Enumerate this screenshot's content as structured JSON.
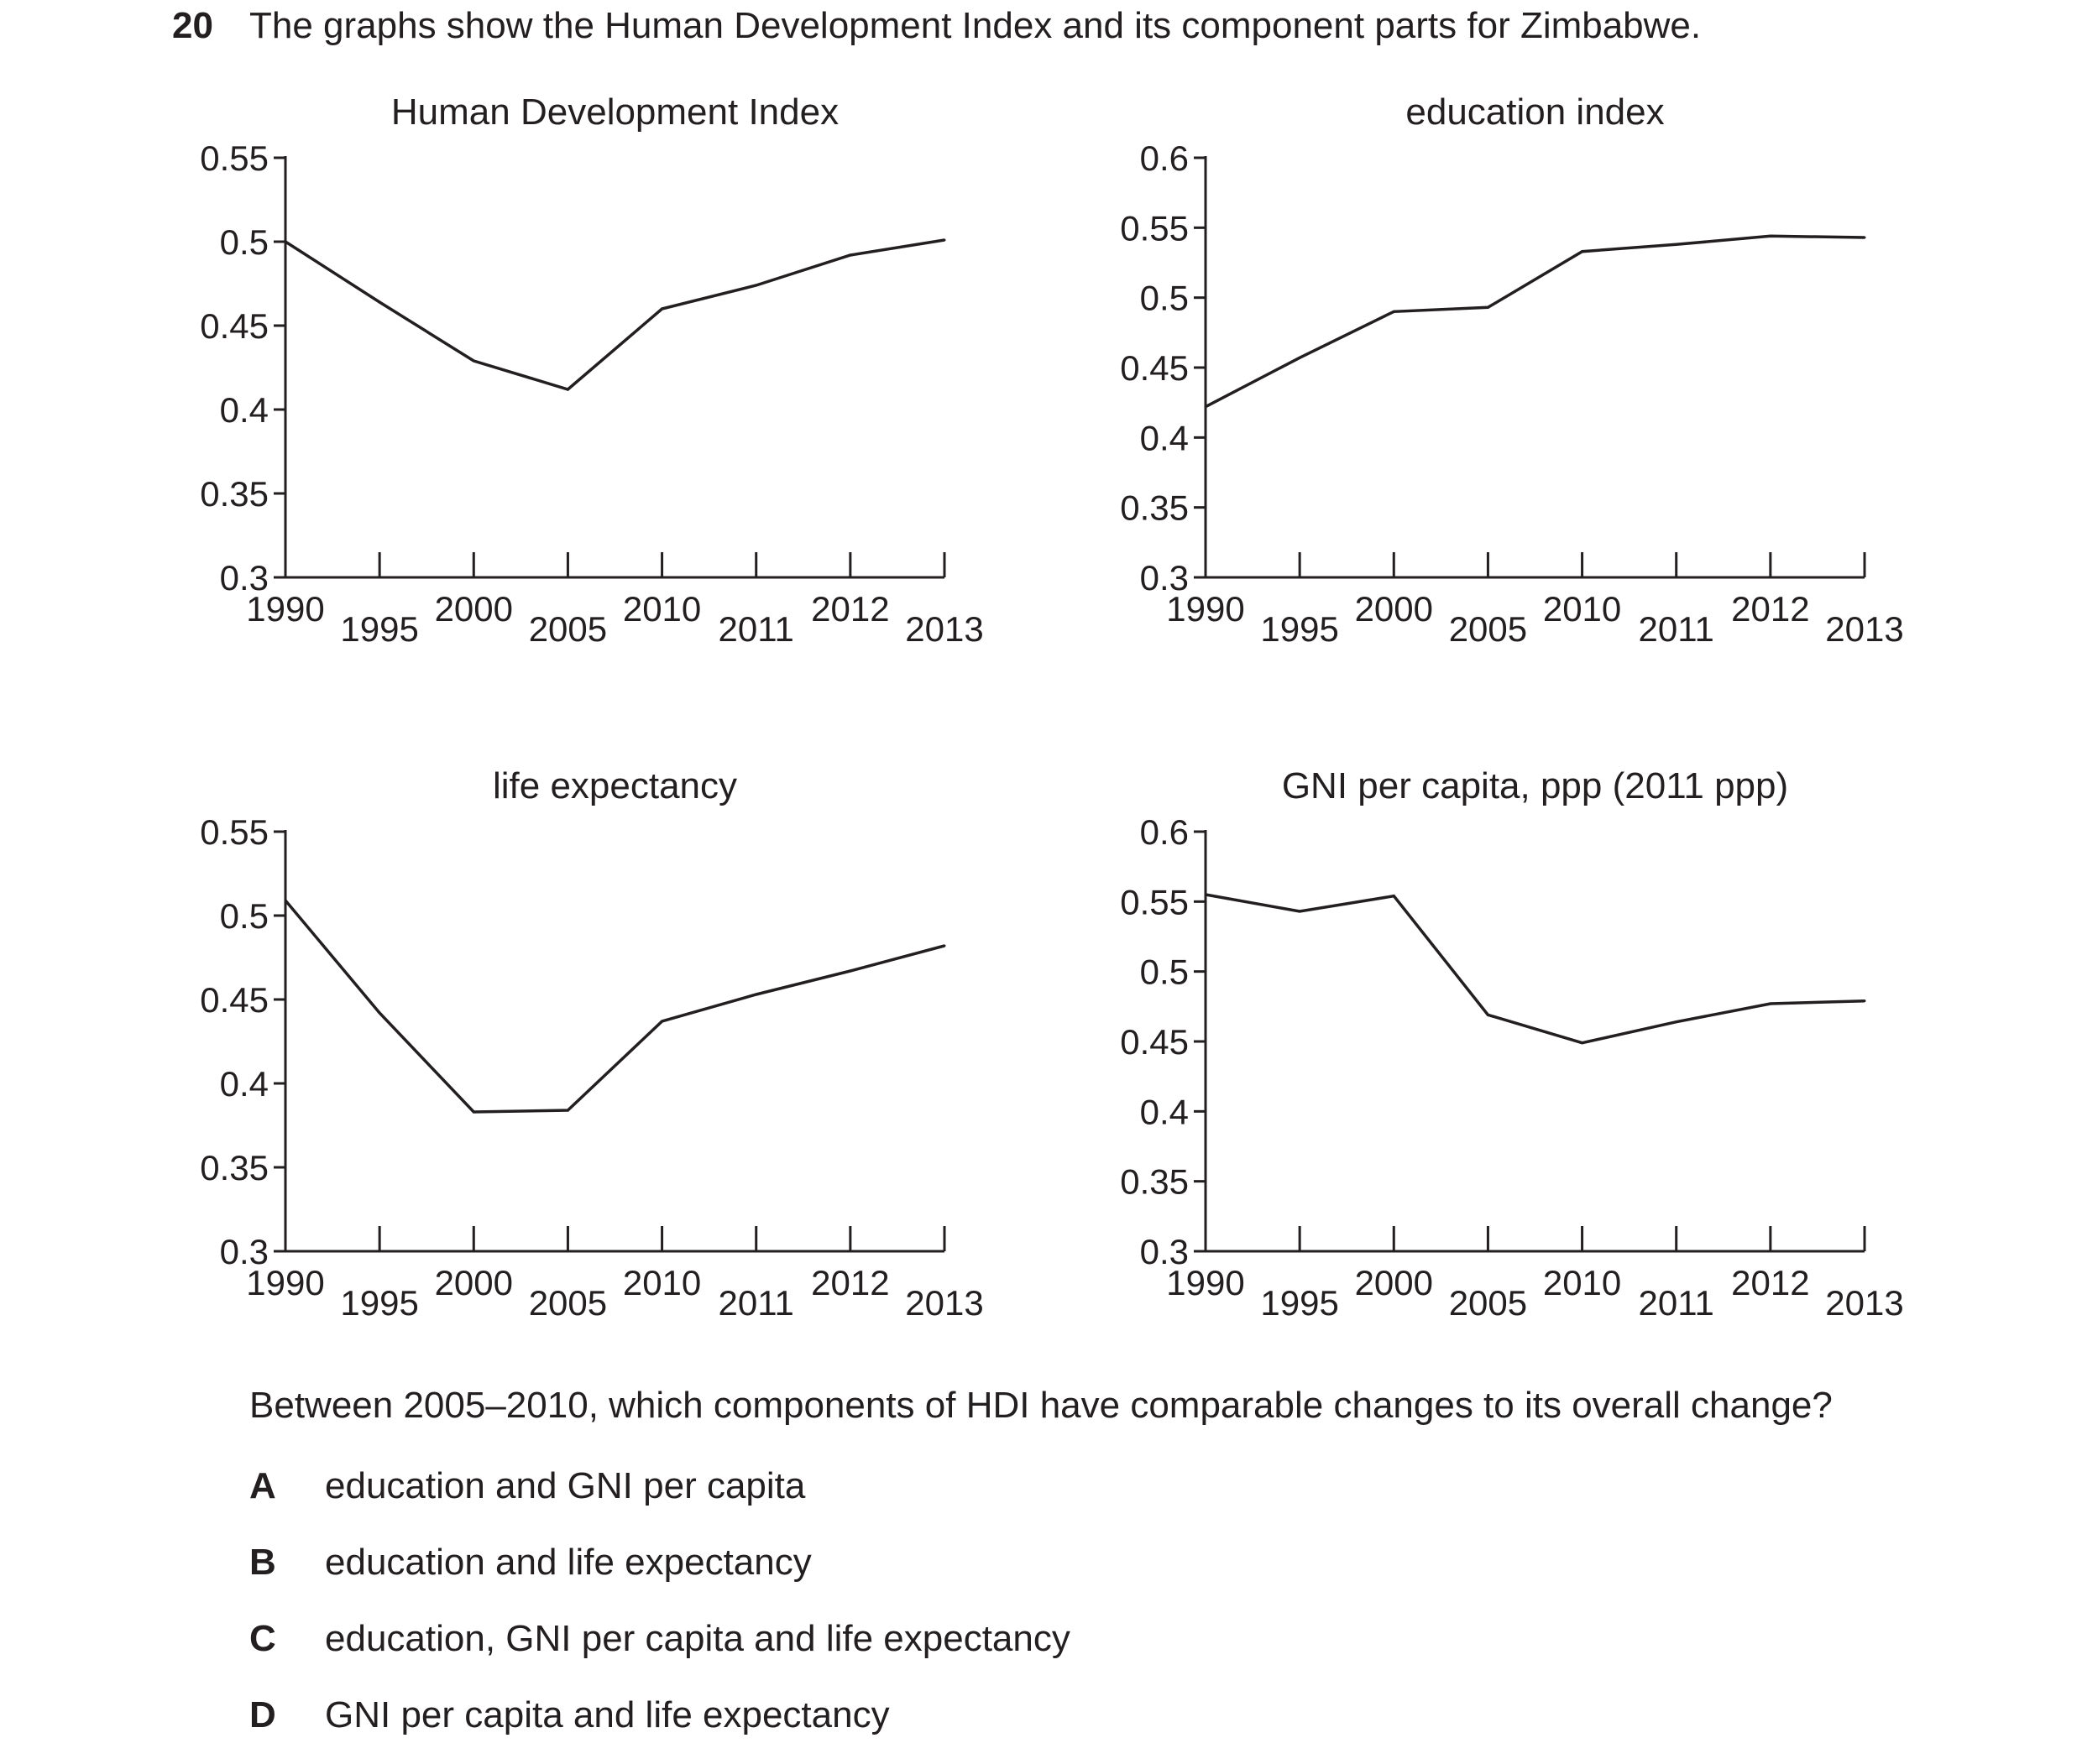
{
  "question": {
    "number": "20",
    "intro": "The graphs show the Human Development Index and its component parts for Zimbabwe.",
    "text": "Between 2005–2010, which components of HDI have comparable changes to its overall change?",
    "options": [
      {
        "letter": "A",
        "text": "education and GNI per capita"
      },
      {
        "letter": "B",
        "text": "education and life expectancy"
      },
      {
        "letter": "C",
        "text": "education, GNI per capita and life expectancy"
      },
      {
        "letter": "D",
        "text": "GNI per capita and life expectancy"
      }
    ]
  },
  "chart_data": [
    {
      "type": "line",
      "title": "Human Development Index",
      "categories": [
        "1990",
        "1995",
        "2000",
        "2005",
        "2010",
        "2011",
        "2012",
        "2013"
      ],
      "values": [
        0.5,
        0.464,
        0.429,
        0.412,
        0.46,
        0.474,
        0.492,
        0.501
      ],
      "ylim": [
        0.3,
        0.55
      ],
      "yticks": [
        "0.3",
        "0.35",
        "0.4",
        "0.45",
        "0.5",
        "0.55"
      ],
      "grid": false
    },
    {
      "type": "line",
      "title": "education index",
      "categories": [
        "1990",
        "1995",
        "2000",
        "2005",
        "2010",
        "2011",
        "2012",
        "2013"
      ],
      "values": [
        0.422,
        0.457,
        0.49,
        0.493,
        0.533,
        0.538,
        0.544,
        0.543
      ],
      "ylim": [
        0.3,
        0.6
      ],
      "yticks": [
        "0.3",
        "0.35",
        "0.4",
        "0.45",
        "0.5",
        "0.55",
        "0.6"
      ],
      "grid": false
    },
    {
      "type": "line",
      "title": "life expectancy",
      "categories": [
        "1990",
        "1995",
        "2000",
        "2005",
        "2010",
        "2011",
        "2012",
        "2013"
      ],
      "values": [
        0.509,
        0.442,
        0.383,
        0.384,
        0.437,
        0.453,
        0.467,
        0.482
      ],
      "ylim": [
        0.3,
        0.55
      ],
      "yticks": [
        "0.3",
        "0.35",
        "0.4",
        "0.45",
        "0.5",
        "0.55"
      ],
      "grid": false
    },
    {
      "type": "line",
      "title": "GNI per capita, ppp (2011 ppp)",
      "categories": [
        "1990",
        "1995",
        "2000",
        "2005",
        "2010",
        "2011",
        "2012",
        "2013"
      ],
      "values": [
        0.555,
        0.543,
        0.554,
        0.469,
        0.449,
        0.464,
        0.477,
        0.479
      ],
      "ylim": [
        0.3,
        0.6
      ],
      "yticks": [
        "0.3",
        "0.35",
        "0.4",
        "0.45",
        "0.5",
        "0.55",
        "0.6"
      ],
      "grid": false
    }
  ]
}
